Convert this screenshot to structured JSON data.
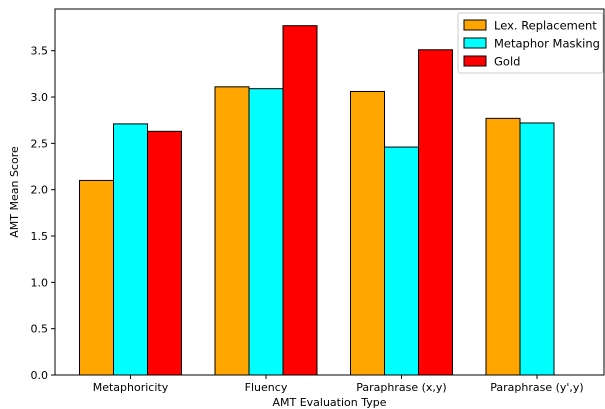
{
  "chart_data": {
    "type": "bar",
    "title": "",
    "xlabel": "AMT Evaluation Type",
    "ylabel": "AMT Mean Score",
    "categories": [
      "Metaphoricity",
      "Fluency",
      "Paraphrase (x,y)",
      "Paraphrase (y',y)"
    ],
    "series": [
      {
        "name": "Lex. Replacement",
        "color": "#ffa500",
        "values": [
          2.1,
          3.11,
          3.06,
          2.77
        ]
      },
      {
        "name": "Metaphor Masking",
        "color": "#00ffff",
        "values": [
          2.71,
          3.09,
          2.46,
          2.72
        ]
      },
      {
        "name": "Gold",
        "color": "#ff0000",
        "values": [
          2.63,
          3.77,
          3.51,
          null
        ]
      }
    ],
    "ylim": [
      0,
      3.95
    ],
    "yticks": [
      0.0,
      0.5,
      1.0,
      1.5,
      2.0,
      2.5,
      3.0,
      3.5
    ],
    "ytick_labels": [
      "0.0",
      "0.5",
      "1.0",
      "1.5",
      "2.0",
      "2.5",
      "3.0",
      "3.5"
    ],
    "grid": false,
    "legend_position": "top-right"
  }
}
